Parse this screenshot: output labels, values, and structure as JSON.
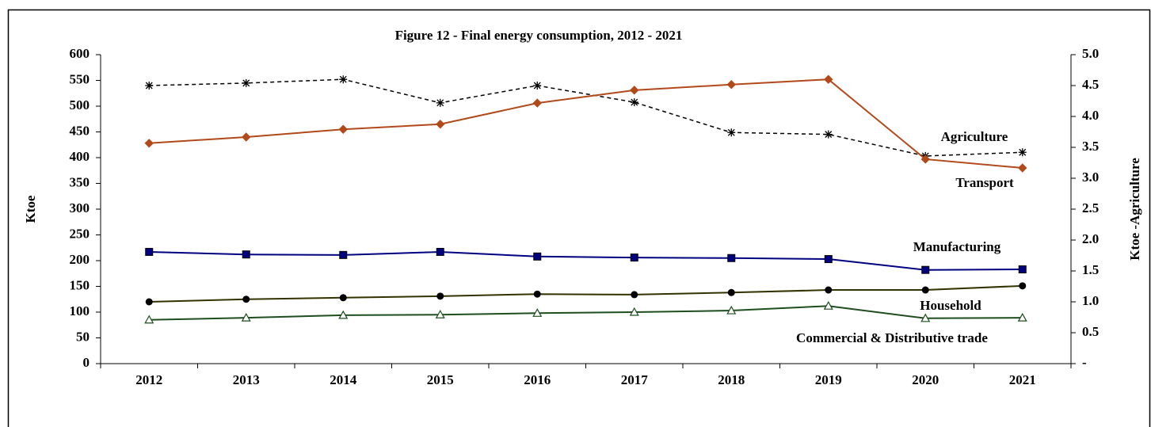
{
  "chart_data": {
    "type": "line",
    "title": "Figure 12 - Final energy consumption, 2012 - 2021",
    "y_label": "Ktoe",
    "y2_label": "Ktoe -Agriculture",
    "categories": [
      "2012",
      "2013",
      "2014",
      "2015",
      "2016",
      "2017",
      "2018",
      "2019",
      "2020",
      "2021"
    ],
    "ylim": [
      0,
      600
    ],
    "yticks": [
      0,
      50,
      100,
      150,
      200,
      250,
      300,
      350,
      400,
      450,
      500,
      550,
      600
    ],
    "y2lim": [
      0,
      5
    ],
    "y2ticks": [
      {
        "value": 0,
        "label": "-"
      },
      0.5,
      {
        "value": 1,
        "label": "1.0"
      },
      1.5,
      {
        "value": 2,
        "label": "2.0"
      },
      2.5,
      {
        "value": 3,
        "label": "3.0"
      },
      3.5,
      {
        "value": 4,
        "label": "4.0"
      },
      4.5,
      {
        "value": 5,
        "label": "5.0"
      }
    ],
    "series": [
      {
        "name": "Agriculture",
        "color": "#000000",
        "axis": "y2",
        "values": [
          4.5,
          4.54,
          4.6,
          4.22,
          4.5,
          4.23,
          3.74,
          3.71,
          3.36,
          3.42
        ]
      },
      {
        "name": "Transport",
        "color": "#b14a1a",
        "values": [
          428,
          440,
          455,
          465,
          506,
          531,
          542,
          552,
          397,
          380
        ]
      },
      {
        "name": "Manufacturing",
        "color": "#000080",
        "values": [
          217,
          212,
          211,
          217,
          208,
          206,
          205,
          203,
          182,
          183
        ]
      },
      {
        "name": "Household",
        "color": "#333300",
        "values": [
          120,
          125,
          128,
          131,
          135,
          134,
          138,
          143,
          143,
          151
        ]
      },
      {
        "name": "Commercial & Distributive trade",
        "color": "#1e4d1e",
        "values": [
          85,
          89,
          94,
          95,
          98,
          100,
          103,
          112,
          88,
          89
        ]
      }
    ]
  }
}
